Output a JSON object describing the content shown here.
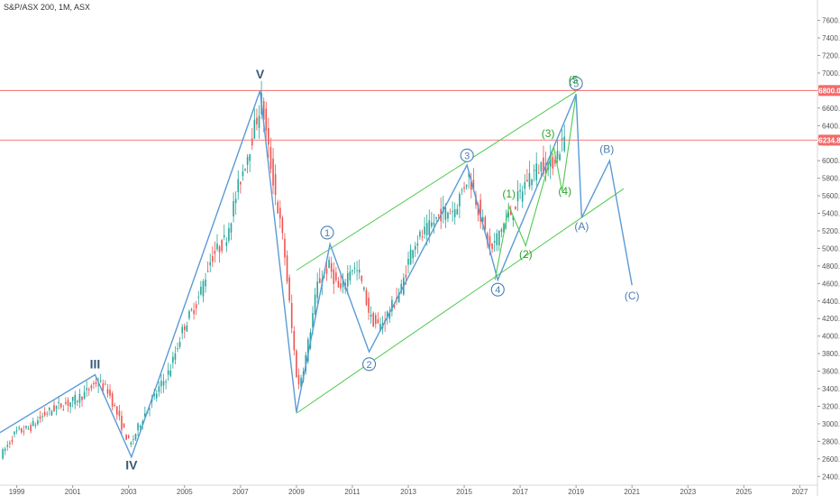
{
  "symbol": "S&P/ASX 200, 1M, ASX",
  "chart_data": {
    "type": "candlestick",
    "title": "S&P/ASX 200, 1M, ASX",
    "xlabel": "",
    "ylabel": "",
    "xlim": [
      1998.4,
      2027.6
    ],
    "ylim": [
      2300,
      7750
    ],
    "y_ticks": [
      "2400.0",
      "2600.0",
      "2800.0",
      "3000.0",
      "3200.0",
      "3400.0",
      "3600.0",
      "3800.0",
      "4000.0",
      "4200.0",
      "4400.0",
      "4600.0",
      "4800.0",
      "5000.0",
      "5200.0",
      "5400.0",
      "5600.0",
      "5800.0",
      "6000.0",
      "6200.0",
      "6400.0",
      "6600.0",
      "6800.0",
      "7000.0",
      "7200.0",
      "7400.0",
      "7600.0"
    ],
    "x_ticks": [
      "1999",
      "2001",
      "2003",
      "2005",
      "2007",
      "2009",
      "2011",
      "2013",
      "2015",
      "2017",
      "2019",
      "2021",
      "2023",
      "2025",
      "2027"
    ],
    "grid": false,
    "price_key": [
      [
        1998.5,
        2650
      ],
      [
        1999.0,
        2900
      ],
      [
        1999.5,
        2950
      ],
      [
        2000.0,
        3100
      ],
      [
        2000.5,
        3200
      ],
      [
        2001.0,
        3250
      ],
      [
        2001.5,
        3350
      ],
      [
        2001.9,
        3480
      ],
      [
        2002.3,
        3380
      ],
      [
        2002.7,
        3050
      ],
      [
        2003.1,
        2750
      ],
      [
        2003.5,
        3050
      ],
      [
        2003.9,
        3280
      ],
      [
        2004.5,
        3600
      ],
      [
        2005.0,
        4100
      ],
      [
        2005.5,
        4400
      ],
      [
        2006.0,
        4900
      ],
      [
        2006.5,
        5100
      ],
      [
        2007.0,
        5750
      ],
      [
        2007.4,
        6200
      ],
      [
        2007.8,
        6700
      ],
      [
        2008.0,
        6200
      ],
      [
        2008.3,
        5600
      ],
      [
        2008.6,
        5000
      ],
      [
        2008.9,
        4000
      ],
      [
        2009.1,
        3400
      ],
      [
        2009.4,
        3800
      ],
      [
        2009.8,
        4600
      ],
      [
        2010.2,
        4800
      ],
      [
        2010.6,
        4500
      ],
      [
        2011.0,
        4800
      ],
      [
        2011.3,
        4700
      ],
      [
        2011.7,
        4200
      ],
      [
        2012.0,
        4100
      ],
      [
        2012.4,
        4300
      ],
      [
        2012.8,
        4550
      ],
      [
        2013.2,
        5050
      ],
      [
        2013.7,
        5200
      ],
      [
        2014.2,
        5400
      ],
      [
        2014.7,
        5450
      ],
      [
        2015.2,
        5850
      ],
      [
        2015.6,
        5400
      ],
      [
        2016.0,
        4950
      ],
      [
        2016.3,
        5200
      ],
      [
        2016.8,
        5450
      ],
      [
        2017.3,
        5800
      ],
      [
        2017.8,
        5950
      ],
      [
        2018.1,
        5950
      ],
      [
        2018.4,
        6100
      ],
      [
        2018.6,
        6250
      ]
    ],
    "horizontal_levels": [
      {
        "label": "6800.0",
        "value": 6800,
        "color": "#f26b6b"
      },
      {
        "label": "6234.8",
        "value": 6234.8,
        "color": "#f26b6b"
      }
    ],
    "wave_lines": [
      {
        "name": "main-wave-path",
        "color": "#5b9ad6",
        "points": [
          [
            1998.4,
            2900
          ],
          [
            2001.8,
            3560
          ],
          [
            2003.1,
            2620
          ],
          [
            2007.7,
            6800
          ],
          [
            2009.0,
            3130
          ],
          [
            2010.2,
            5050
          ],
          [
            2011.6,
            3820
          ],
          [
            2015.1,
            5950
          ],
          [
            2016.2,
            4640
          ],
          [
            2019.0,
            6760
          ],
          [
            2019.2,
            5350
          ],
          [
            2020.2,
            6000
          ],
          [
            2021.0,
            4580
          ]
        ]
      },
      {
        "name": "sub-wave-path",
        "color": "#4fc94f",
        "points": [
          [
            2016.1,
            4640
          ],
          [
            2016.6,
            5480
          ],
          [
            2017.2,
            5030
          ],
          [
            2018.2,
            6160
          ],
          [
            2018.5,
            5650
          ],
          [
            2019.0,
            6760
          ]
        ]
      }
    ],
    "channel_lines": [
      {
        "name": "channel-lower-line",
        "color": "#4fc94f",
        "points": [
          [
            2009.0,
            3120
          ],
          [
            2020.7,
            5680
          ]
        ]
      },
      {
        "name": "channel-upper-line",
        "color": "#4fc94f",
        "points": [
          [
            2009.0,
            4750
          ],
          [
            2019.0,
            6790
          ]
        ]
      }
    ],
    "annotations": [
      {
        "text": "III",
        "x": 2001.8,
        "y": 3630,
        "color": "#3a5a7a",
        "style": "roman"
      },
      {
        "text": "IV",
        "x": 2003.1,
        "y": 2480,
        "color": "#3a5a7a",
        "style": "roman"
      },
      {
        "text": "V",
        "x": 2007.7,
        "y": 6940,
        "color": "#3a5a7a",
        "style": "roman"
      },
      {
        "text": "1",
        "x": 2010.1,
        "y": 5180,
        "color": "#4a7fb5",
        "style": "circle"
      },
      {
        "text": "2",
        "x": 2011.6,
        "y": 3680,
        "color": "#4a7fb5",
        "style": "circle"
      },
      {
        "text": "3",
        "x": 2015.1,
        "y": 6060,
        "color": "#4a7fb5",
        "style": "circle"
      },
      {
        "text": "4",
        "x": 2016.2,
        "y": 4530,
        "color": "#4a7fb5",
        "style": "circle"
      },
      {
        "text": "5",
        "x": 2019.0,
        "y": 6880,
        "color": "#4a7fb5",
        "style": "circle"
      },
      {
        "text": "(5",
        "x": 2018.9,
        "y": 6880,
        "color": "#2aa52a",
        "style": "paren"
      },
      {
        "text": "(1)",
        "x": 2016.6,
        "y": 5580,
        "color": "#2aa52a",
        "style": "paren"
      },
      {
        "text": "(2)",
        "x": 2017.2,
        "y": 4890,
        "color": "#2aa52a",
        "style": "paren"
      },
      {
        "text": "(3)",
        "x": 2018.0,
        "y": 6270,
        "color": "#2aa52a",
        "style": "paren"
      },
      {
        "text": "(4)",
        "x": 2018.6,
        "y": 5610,
        "color": "#2aa52a",
        "style": "paren"
      },
      {
        "text": "(A)",
        "x": 2019.2,
        "y": 5210,
        "color": "#4a7fb5",
        "style": "paren"
      },
      {
        "text": "(B)",
        "x": 2020.1,
        "y": 6090,
        "color": "#4a7fb5",
        "style": "paren"
      },
      {
        "text": "(C)",
        "x": 2021.0,
        "y": 4420,
        "color": "#4a7fb5",
        "style": "paren"
      }
    ]
  },
  "colors": {
    "up": "#26a69a",
    "down": "#ef5350",
    "axis_text": "#555555",
    "axis_line": "#d8d8d8",
    "level_line": "#f26b6b",
    "badge_bg": "#f26b6b"
  }
}
